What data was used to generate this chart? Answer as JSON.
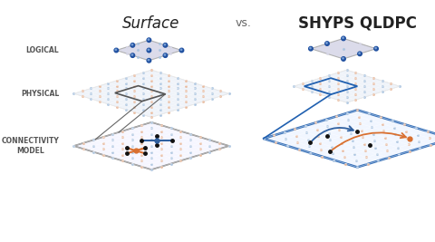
{
  "title_surface": "Surface",
  "title_shyps": "SHYPS QLDPC",
  "vs_text": "vs.",
  "label_logical": "LOGICAL",
  "label_physical": "PHYSICAL",
  "label_connectivity": "CONNECTIVITY\nMODEL",
  "bg_color": "#ffffff",
  "grid_blue_light": "#aac4e0",
  "grid_orange_light": "#e8b89a",
  "orange_color": "#d97030",
  "blue_color": "#3060a0",
  "blue_border": "#2060b0",
  "node_color": "#111111",
  "logical_bg": "#d8d8e8",
  "ball_color": "#2050a0",
  "label_fontsize": 5.5,
  "title_fontsize": 12,
  "vs_fontsize": 9
}
